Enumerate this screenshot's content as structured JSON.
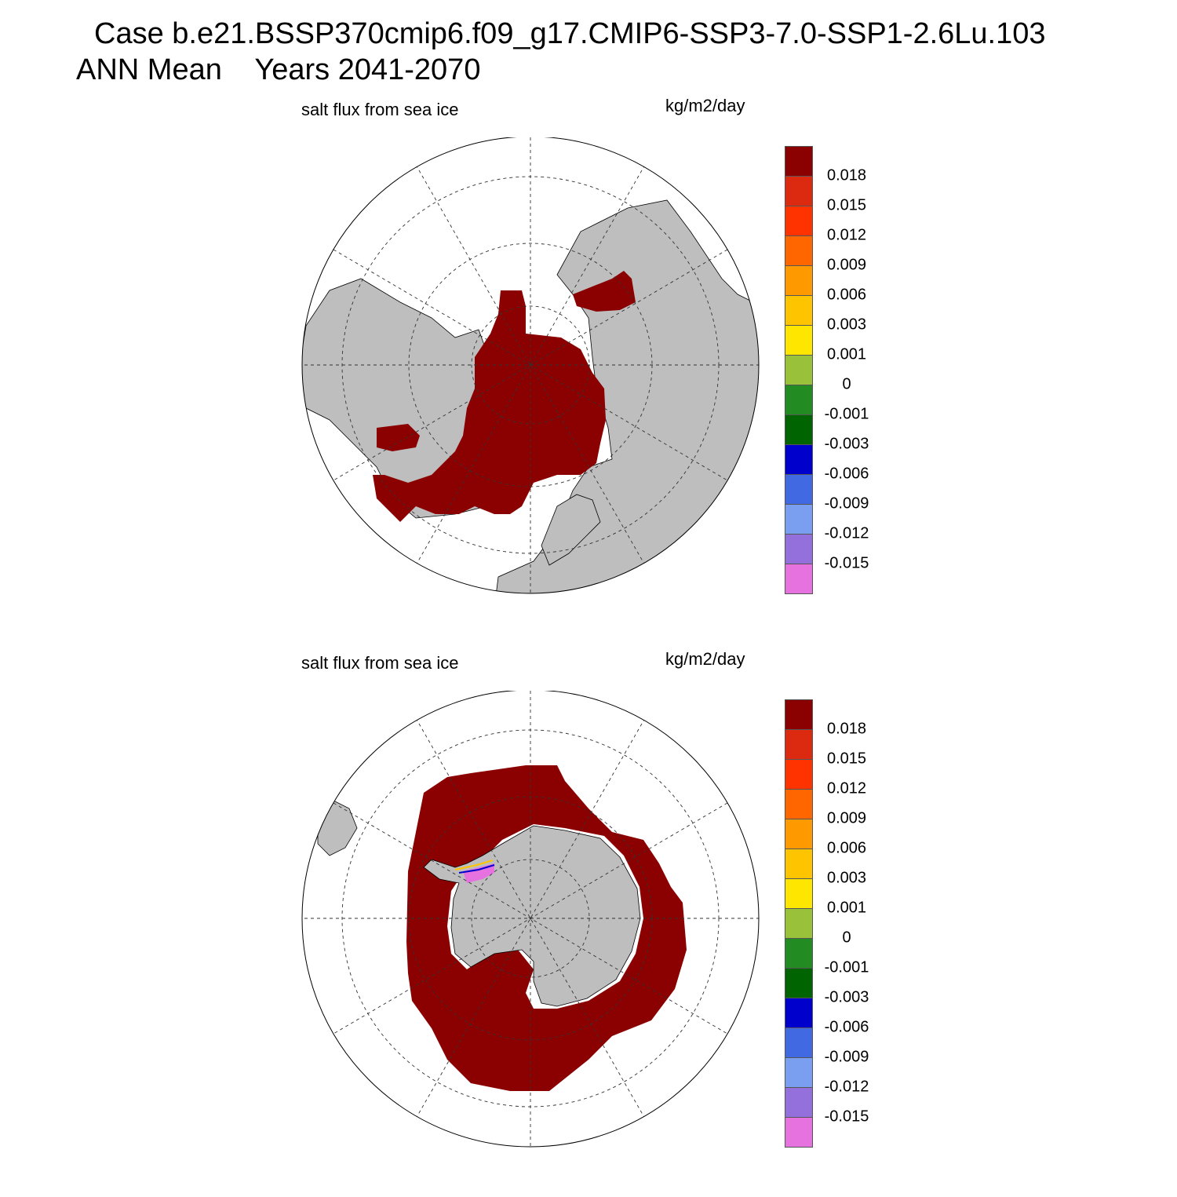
{
  "header": {
    "case_line": "Case b.e21.BSSP370cmip6.f09_g17.CMIP6-SSP3-7.0-SSP1-2.6Lu.103",
    "period_line": "ANN Mean    Years 2041-2070"
  },
  "colors": {
    "land": "#bebebe",
    "ocean_open": "#ffffff",
    "sea_ice_flux_max": "#8b0000"
  },
  "colorbar": {
    "labels": [
      "0.018",
      "0.015",
      "0.012",
      "0.009",
      "0.006",
      "0.003",
      "0.001",
      "0",
      "-0.001",
      "-0.003",
      "-0.006",
      "-0.009",
      "-0.012",
      "-0.015"
    ],
    "colors": [
      "#8b0000",
      "#dc2a10",
      "#ff3300",
      "#ff6600",
      "#ff9900",
      "#ffc400",
      "#ffe600",
      "#9ac13a",
      "#228b22",
      "#006400",
      "#0000cd",
      "#4169e1",
      "#7a9ff0",
      "#9370db",
      "#e672e0"
    ]
  },
  "panels": [
    {
      "id": "north",
      "variable": "salt flux from sea ice",
      "units": "kg/m2/day",
      "projection": "north-polar-stereographic"
    },
    {
      "id": "south",
      "variable": "salt flux from sea ice",
      "units": "kg/m2/day",
      "projection": "south-polar-stereographic"
    }
  ]
}
